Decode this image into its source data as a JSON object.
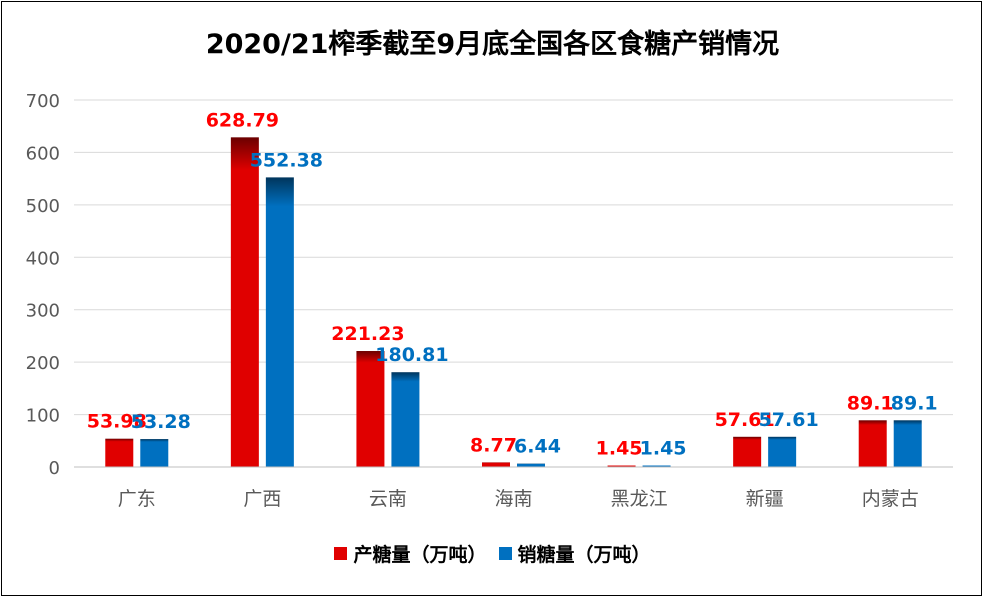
{
  "chart_data": {
    "type": "bar",
    "title": "2020/21榨季截至9月底全国各区食糖产销情况",
    "categories": [
      "广东",
      "广西",
      "云南",
      "海南",
      "黑龙江",
      "新疆",
      "内蒙古"
    ],
    "series": [
      {
        "name": "产糖量（万吨）",
        "values": [
          53.98,
          628.79,
          221.23,
          8.77,
          1.45,
          57.61,
          89.1
        ],
        "labels": [
          "53.98",
          "628.79",
          "221.23",
          "8.77",
          "1.45",
          "57.61",
          "89.1"
        ],
        "color": "#e00000",
        "label_color": "#ff0000"
      },
      {
        "name": "销糖量（万吨）",
        "values": [
          53.28,
          552.38,
          180.81,
          6.44,
          1.45,
          57.61,
          89.1
        ],
        "labels": [
          "53.28",
          "552.38",
          "180.81",
          "6.44",
          "1.45",
          "57.61",
          "89.1"
        ],
        "color": "#0070c0",
        "label_color": "#0070c0"
      }
    ],
    "ylim": [
      0,
      700
    ],
    "yticks": [
      0,
      100,
      200,
      300,
      400,
      500,
      600,
      700
    ],
    "ytick_labels": [
      "0",
      "100",
      "200",
      "300",
      "400",
      "500",
      "600",
      "700"
    ],
    "grid": true,
    "legend": "bottom-center"
  }
}
